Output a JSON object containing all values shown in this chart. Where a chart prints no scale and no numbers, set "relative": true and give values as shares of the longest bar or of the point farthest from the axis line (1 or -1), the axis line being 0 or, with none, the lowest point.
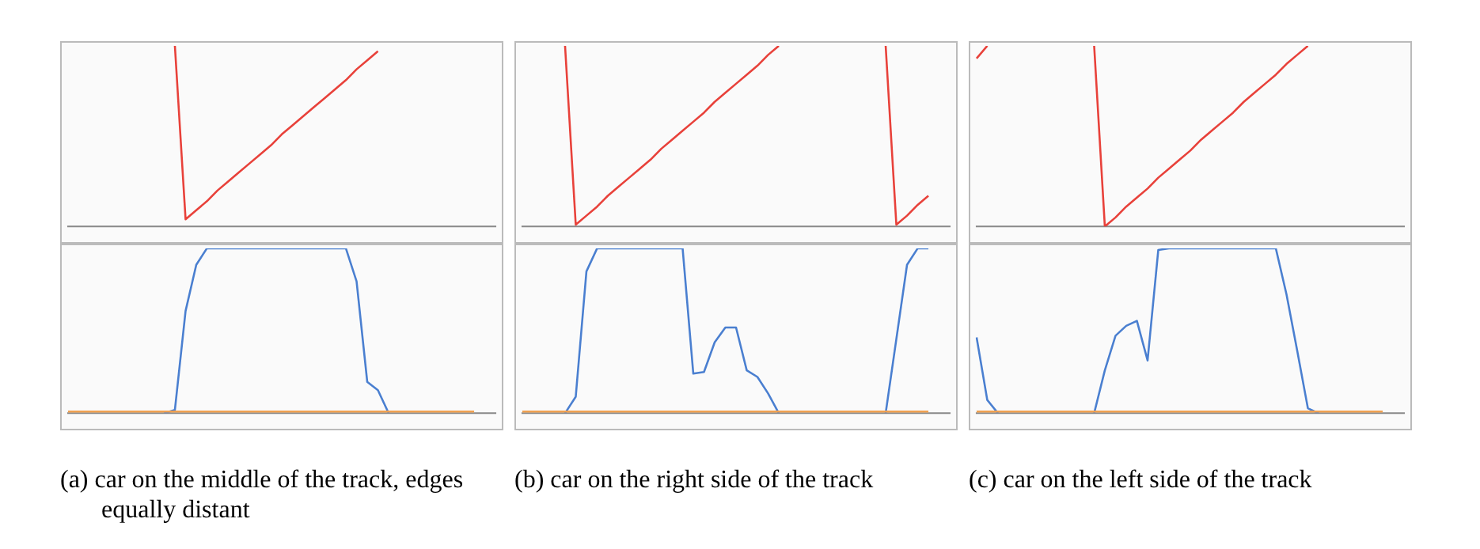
{
  "chart_data": [
    {
      "type": "line",
      "relative": true,
      "marker": "none",
      "categories": [
        null,
        null,
        null,
        null,
        null,
        null,
        null,
        null,
        null,
        null,
        null,
        null,
        null,
        null,
        null,
        null,
        null,
        null,
        null,
        null,
        null,
        null,
        null,
        null,
        null,
        null,
        null,
        null,
        null,
        null,
        null,
        null,
        null,
        null,
        null,
        null,
        null,
        null,
        null,
        null,
        null
      ],
      "series": [
        {
          "color": "#e8413a",
          "values": [
            null,
            null,
            null,
            null,
            null,
            null,
            null,
            null,
            null,
            null,
            1,
            0.04,
            0.09,
            0.14,
            0.2,
            0.25,
            0.3,
            0.35,
            0.4,
            0.45,
            0.51,
            0.56,
            0.61,
            0.66,
            0.71,
            0.76,
            0.81,
            0.87,
            0.92,
            0.97,
            null,
            null,
            null,
            null,
            null,
            null,
            null,
            null,
            null,
            null,
            null
          ]
        }
      ]
    },
    {
      "type": "line",
      "relative": true,
      "marker": "none",
      "categories": [
        null,
        null,
        null,
        null,
        null,
        null,
        null,
        null,
        null,
        null,
        null,
        null,
        null,
        null,
        null,
        null,
        null,
        null,
        null,
        null,
        null,
        null,
        null,
        null,
        null,
        null,
        null,
        null,
        null,
        null,
        null,
        null,
        null,
        null,
        null,
        null,
        null,
        null,
        null,
        null,
        null
      ],
      "series": [
        {
          "color": "#f0a050",
          "values": [
            0.01,
            0.01,
            0.01,
            0.01,
            0.01,
            0.01,
            0.01,
            0.01,
            0.01,
            0.01,
            0.01,
            0.01,
            0.01,
            0.01,
            0.01,
            0.01,
            0.01,
            0.01,
            0.01,
            0.01,
            0.01,
            0.01,
            0.01,
            0.01,
            0.01,
            0.01,
            0.01,
            0.01,
            0.01,
            0.01,
            0.01,
            0.01,
            0.01,
            0.01,
            0.01,
            0.01,
            0.01,
            0.01,
            0.01,
            null,
            null
          ]
        },
        {
          "color": "#4a7fd0",
          "values": [
            null,
            null,
            null,
            null,
            null,
            null,
            null,
            null,
            null,
            0,
            0.02,
            0.62,
            0.9,
            1,
            1,
            1,
            1,
            1,
            1,
            1,
            1,
            1,
            1,
            1,
            1,
            1,
            1,
            0.8,
            0.19,
            0.14,
            0,
            null,
            null,
            null,
            null,
            null,
            null,
            null,
            null,
            null,
            null
          ]
        }
      ],
      "annotations": [
        "(a) car on the middle of the track, edges equally distant"
      ]
    },
    {
      "type": "line",
      "relative": true,
      "marker": "none",
      "categories": [
        null,
        null,
        null,
        null,
        null,
        null,
        null,
        null,
        null,
        null,
        null,
        null,
        null,
        null,
        null,
        null,
        null,
        null,
        null,
        null,
        null,
        null,
        null,
        null,
        null,
        null,
        null,
        null,
        null,
        null,
        null,
        null,
        null,
        null,
        null,
        null,
        null,
        null,
        null,
        null,
        null
      ],
      "series": [
        {
          "color": "#e8413a",
          "values": [
            null,
            null,
            null,
            null,
            1,
            0.01,
            0.06,
            0.11,
            0.17,
            0.22,
            0.27,
            0.32,
            0.37,
            0.43,
            0.48,
            0.53,
            0.58,
            0.63,
            0.69,
            0.74,
            0.79,
            0.84,
            0.89,
            0.95,
            1,
            null,
            null,
            null,
            null,
            null,
            null,
            null,
            null,
            null,
            null,
            null,
            null,
            null,
            null,
            null,
            null
          ]
        },
        {
          "color": "#e8413a",
          "values": [
            null,
            null,
            null,
            null,
            null,
            null,
            null,
            null,
            null,
            null,
            null,
            null,
            null,
            null,
            null,
            null,
            null,
            null,
            null,
            null,
            null,
            null,
            null,
            null,
            null,
            null,
            null,
            null,
            null,
            null,
            null,
            null,
            null,
            null,
            1,
            0.01,
            0.06,
            0.12,
            0.17,
            null,
            null
          ]
        }
      ]
    },
    {
      "type": "line",
      "relative": true,
      "marker": "none",
      "categories": [
        null,
        null,
        null,
        null,
        null,
        null,
        null,
        null,
        null,
        null,
        null,
        null,
        null,
        null,
        null,
        null,
        null,
        null,
        null,
        null,
        null,
        null,
        null,
        null,
        null,
        null,
        null,
        null,
        null,
        null,
        null,
        null,
        null,
        null,
        null,
        null,
        null,
        null,
        null,
        null,
        null
      ],
      "series": [
        {
          "color": "#f0a050",
          "values": [
            0.01,
            0.01,
            0.01,
            0.01,
            0.01,
            0.01,
            0.01,
            0.01,
            0.01,
            0.01,
            0.01,
            0.01,
            0.01,
            0.01,
            0.01,
            0.01,
            0.01,
            0.01,
            0.01,
            0.01,
            0.01,
            0.01,
            0.01,
            0.01,
            0.01,
            0.01,
            0.01,
            0.01,
            0.01,
            0.01,
            0.01,
            0.01,
            0.01,
            0.01,
            0.01,
            0.01,
            0.01,
            0.01,
            0.01,
            null,
            null
          ]
        },
        {
          "color": "#4a7fd0",
          "values": [
            null,
            null,
            null,
            null,
            0,
            0.1,
            0.86,
            1,
            1,
            1,
            1,
            1,
            1,
            1,
            1,
            1,
            0.24,
            0.25,
            0.43,
            0.52,
            0.52,
            0.26,
            0.22,
            0.12,
            0,
            null,
            null,
            null,
            null,
            null,
            null,
            null,
            null,
            null,
            null,
            null,
            null,
            null,
            null,
            null,
            null
          ]
        },
        {
          "color": "#4a7fd0",
          "values": [
            null,
            null,
            null,
            null,
            null,
            null,
            null,
            null,
            null,
            null,
            null,
            null,
            null,
            null,
            null,
            null,
            null,
            null,
            null,
            null,
            null,
            null,
            null,
            null,
            null,
            null,
            null,
            null,
            null,
            null,
            null,
            null,
            null,
            null,
            0,
            0.45,
            0.9,
            1,
            1,
            null,
            null
          ]
        }
      ],
      "annotations": [
        "(b) car on the right side of the track"
      ]
    },
    {
      "type": "line",
      "relative": true,
      "marker": "none",
      "categories": [
        null,
        null,
        null,
        null,
        null,
        null,
        null,
        null,
        null,
        null,
        null,
        null,
        null,
        null,
        null,
        null,
        null,
        null,
        null,
        null,
        null,
        null,
        null,
        null,
        null,
        null,
        null,
        null,
        null,
        null,
        null,
        null,
        null,
        null,
        null,
        null,
        null,
        null,
        null,
        null,
        null
      ],
      "series": [
        {
          "color": "#e8413a",
          "values": [
            0.93,
            1,
            null,
            null,
            null,
            null,
            null,
            null,
            null,
            null,
            null,
            null,
            null,
            null,
            null,
            null,
            null,
            null,
            null,
            null,
            null,
            null,
            null,
            null,
            null,
            null,
            null,
            null,
            null,
            null,
            null,
            null,
            null,
            null,
            null,
            null,
            null,
            null,
            null,
            null,
            null
          ]
        },
        {
          "color": "#e8413a",
          "values": [
            null,
            null,
            null,
            null,
            null,
            null,
            null,
            null,
            null,
            null,
            null,
            1,
            0,
            0.05,
            0.11,
            0.16,
            0.21,
            0.27,
            0.32,
            0.37,
            0.42,
            0.48,
            0.53,
            0.58,
            0.63,
            0.69,
            0.74,
            0.79,
            0.84,
            0.9,
            0.95,
            1,
            null,
            null,
            null,
            null,
            null,
            null,
            null,
            null,
            null
          ]
        }
      ]
    },
    {
      "type": "line",
      "relative": true,
      "marker": "none",
      "categories": [
        null,
        null,
        null,
        null,
        null,
        null,
        null,
        null,
        null,
        null,
        null,
        null,
        null,
        null,
        null,
        null,
        null,
        null,
        null,
        null,
        null,
        null,
        null,
        null,
        null,
        null,
        null,
        null,
        null,
        null,
        null,
        null,
        null,
        null,
        null,
        null,
        null,
        null,
        null,
        null,
        null
      ],
      "series": [
        {
          "color": "#f0a050",
          "values": [
            0.01,
            0.01,
            0.01,
            0.01,
            0.01,
            0.01,
            0.01,
            0.01,
            0.01,
            0.01,
            0.01,
            0.01,
            0.01,
            0.01,
            0.01,
            0.01,
            0.01,
            0.01,
            0.01,
            0.01,
            0.01,
            0.01,
            0.01,
            0.01,
            0.01,
            0.01,
            0.01,
            0.01,
            0.01,
            0.01,
            0.01,
            0.01,
            0.01,
            0.01,
            0.01,
            0.01,
            0.01,
            0.01,
            0.01,
            null,
            null
          ]
        },
        {
          "color": "#4a7fd0",
          "values": [
            0.46,
            0.08,
            0,
            null,
            null,
            null,
            null,
            null,
            null,
            null,
            null,
            null,
            null,
            null,
            null,
            null,
            null,
            null,
            null,
            null,
            null,
            null,
            null,
            null,
            null,
            null,
            null,
            null,
            null,
            null,
            null,
            null,
            null,
            null,
            null,
            null,
            null,
            null,
            null,
            null,
            null
          ]
        },
        {
          "color": "#4a7fd0",
          "values": [
            null,
            null,
            null,
            null,
            null,
            null,
            null,
            null,
            null,
            null,
            null,
            0,
            0.26,
            0.47,
            0.53,
            0.56,
            0.32,
            0.99,
            1,
            1,
            1,
            1,
            1,
            1,
            1,
            1,
            1,
            1,
            1,
            0.72,
            0.38,
            0.03,
            0,
            null,
            null,
            null,
            null,
            null,
            null,
            null,
            null
          ]
        }
      ],
      "annotations": [
        "(c) car on the left side of the track"
      ]
    }
  ]
}
